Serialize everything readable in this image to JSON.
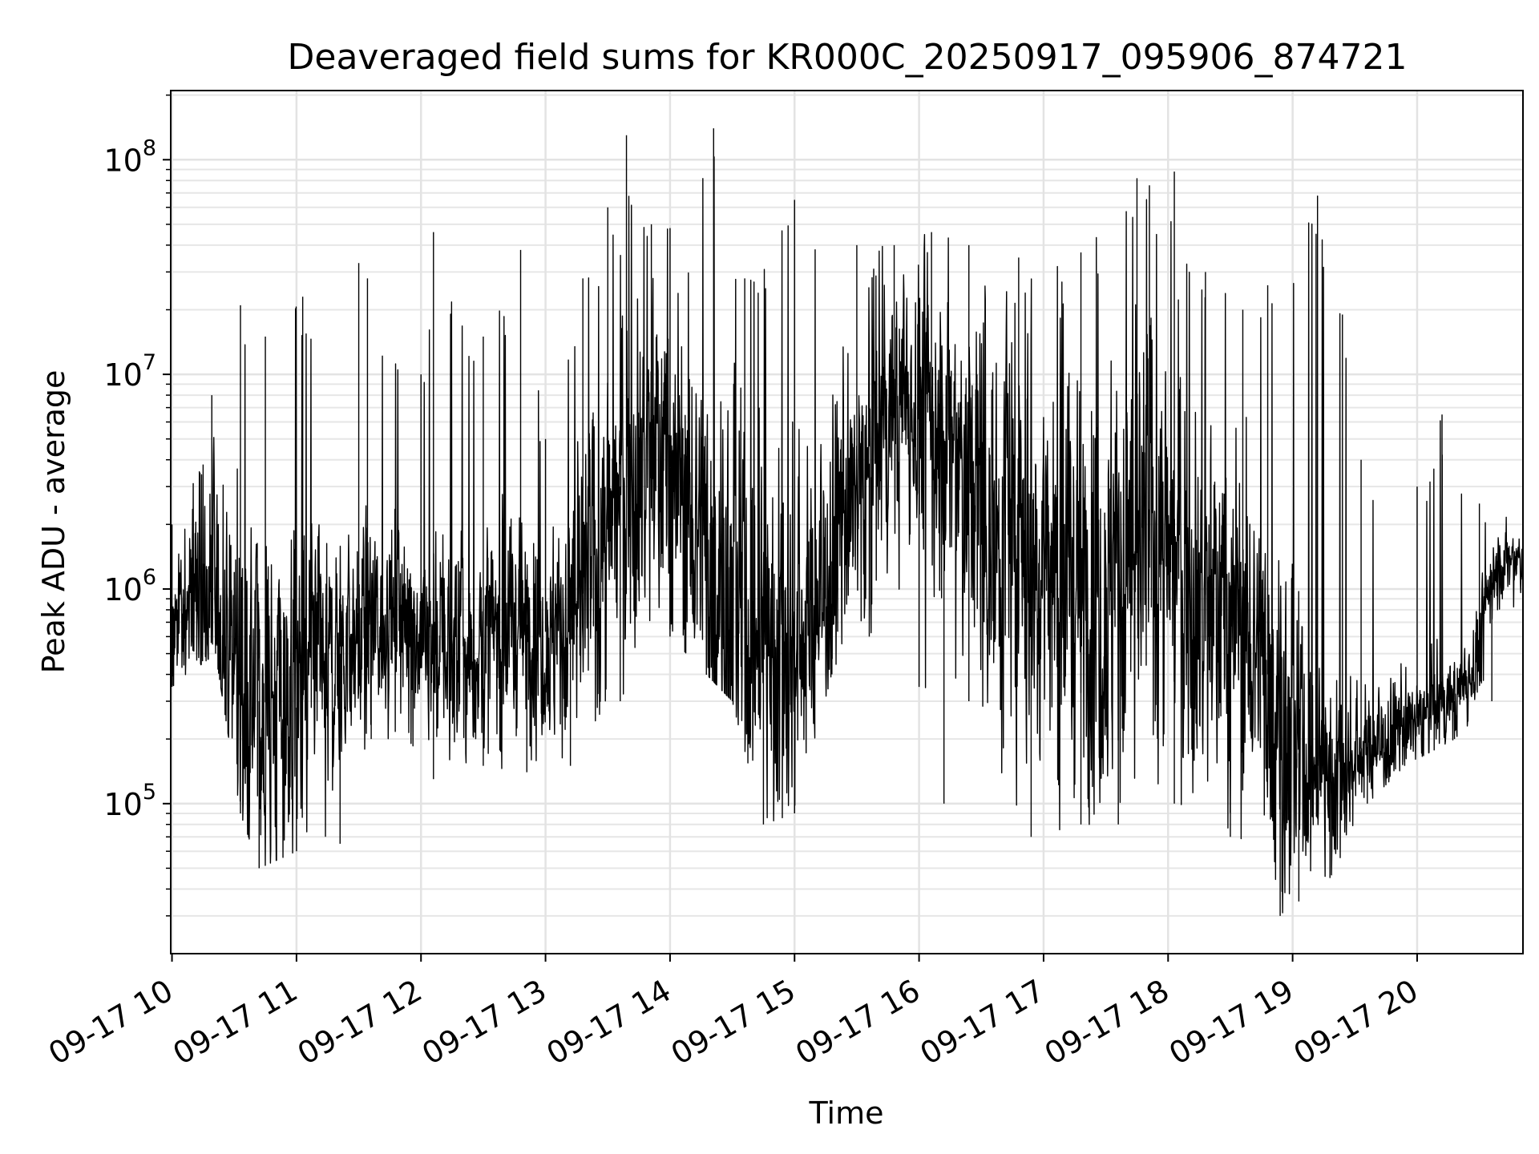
{
  "chart_data": {
    "type": "line",
    "title": "Deaveraged field sums for KR000C_20250917_095906_874721",
    "xlabel": "Time",
    "ylabel": "Peak ADU - average",
    "x_unit": "hour of 2025-09-17",
    "xlim": [
      9.99,
      20.85
    ],
    "ylim": [
      20000,
      210000000
    ],
    "yscale": "log",
    "grid": true,
    "line_color": "#000000",
    "x_ticks": [
      10,
      11,
      12,
      13,
      14,
      15,
      16,
      17,
      18,
      19,
      20
    ],
    "x_tick_labels": [
      "09-17 10",
      "09-17 11",
      "09-17 12",
      "09-17 13",
      "09-17 14",
      "09-17 15",
      "09-17 16",
      "09-17 17",
      "09-17 18",
      "09-17 19",
      "09-17 20"
    ],
    "y_ticks": [
      100000,
      1000000,
      10000000,
      100000000
    ],
    "y_tick_labels": [
      {
        "base": "10",
        "exp": "5"
      },
      {
        "base": "10",
        "exp": "6"
      },
      {
        "base": "10",
        "exp": "7"
      },
      {
        "base": "10",
        "exp": "8"
      }
    ],
    "series": [
      {
        "color": "#000000",
        "median_profile": {
          "x": [
            10.0,
            10.2,
            10.35,
            10.5,
            10.7,
            11.0,
            11.35,
            11.8,
            12.1,
            12.4,
            12.8,
            13.1,
            13.4,
            13.6,
            13.85,
            14.1,
            14.45,
            14.9,
            15.2,
            15.5,
            15.9,
            16.2,
            16.5,
            16.9,
            17.3,
            17.6,
            17.9,
            18.2,
            18.55,
            18.8,
            19.0,
            19.2,
            19.35,
            19.55,
            19.8,
            20.0,
            20.3,
            20.5,
            20.6,
            20.85
          ],
          "y": [
            600000,
            1000000,
            900000,
            400000,
            300000,
            280000,
            500000,
            800000,
            600000,
            500000,
            700000,
            600000,
            1200000,
            3000000,
            5000000,
            3000000,
            900000,
            500000,
            900000,
            3000000,
            8000000,
            5000000,
            2500000,
            1500000,
            1000000,
            1200000,
            1800000,
            1000000,
            800000,
            400000,
            180000,
            150000,
            130000,
            180000,
            200000,
            250000,
            300000,
            500000,
            1200000,
            1400000
          ]
        },
        "spread_profile": {
          "x": [
            10.0,
            10.5,
            11.0,
            11.5,
            12.0,
            12.5,
            13.0,
            13.5,
            14.0,
            14.5,
            15.0,
            15.5,
            16.0,
            16.5,
            17.0,
            17.5,
            18.0,
            18.5,
            19.0,
            19.5,
            20.0,
            20.5,
            20.85
          ],
          "y": [
            0.4,
            1.0,
            1.0,
            0.6,
            0.6,
            0.7,
            0.6,
            1.0,
            1.1,
            1.2,
            1.1,
            0.8,
            0.9,
            1.2,
            1.2,
            1.3,
            1.2,
            1.1,
            0.9,
            0.4,
            0.3,
            0.3,
            0.2
          ]
        },
        "upper_envelope": {
          "x": [
            10.0,
            10.25,
            10.32,
            10.5,
            10.55,
            10.75,
            11.05,
            11.5,
            11.57,
            12.0,
            12.1,
            12.5,
            12.8,
            13.0,
            13.3,
            13.5,
            13.65,
            13.85,
            14.0,
            14.35,
            14.6,
            15.0,
            15.5,
            15.8,
            16.1,
            16.4,
            16.8,
            17.3,
            17.75,
            17.85,
            18.05,
            18.3,
            18.6,
            18.8,
            19.2,
            19.4,
            19.55,
            20.0,
            20.2,
            20.5,
            20.85
          ],
          "y": [
            2000000,
            3800000,
            8000000,
            1200000,
            21000000,
            15000000,
            23000000,
            33000000,
            28000000,
            10000000,
            46000000,
            15000000,
            38000000,
            5000000,
            28000000,
            60000000,
            130000000,
            50000000,
            48000000,
            140000000,
            28000000,
            65000000,
            40000000,
            40000000,
            46000000,
            40000000,
            35000000,
            37000000,
            82000000,
            76000000,
            88000000,
            30000000,
            20000000,
            26000000,
            68000000,
            19000000,
            4000000,
            3000000,
            6500000,
            2500000,
            2500000
          ]
        },
        "lower_envelope": {
          "x": [
            10.0,
            10.35,
            10.55,
            10.7,
            11.0,
            11.35,
            11.6,
            12.1,
            12.5,
            12.85,
            13.2,
            13.6,
            14.0,
            14.5,
            14.75,
            15.0,
            15.3,
            15.6,
            16.0,
            16.2,
            16.4,
            16.9,
            17.3,
            17.6,
            18.05,
            18.5,
            18.9,
            19.05,
            19.3,
            19.6,
            19.9,
            20.3,
            20.6,
            20.85
          ],
          "y": [
            350000,
            500000,
            90000,
            50000,
            60000,
            65000,
            200000,
            130000,
            150000,
            140000,
            150000,
            300000,
            600000,
            300000,
            80000,
            90000,
            400000,
            600000,
            350000,
            100000,
            300000,
            70000,
            80000,
            80000,
            100000,
            70000,
            30000,
            35000,
            45000,
            100000,
            150000,
            200000,
            300000,
            1000000
          ]
        }
      }
    ]
  }
}
